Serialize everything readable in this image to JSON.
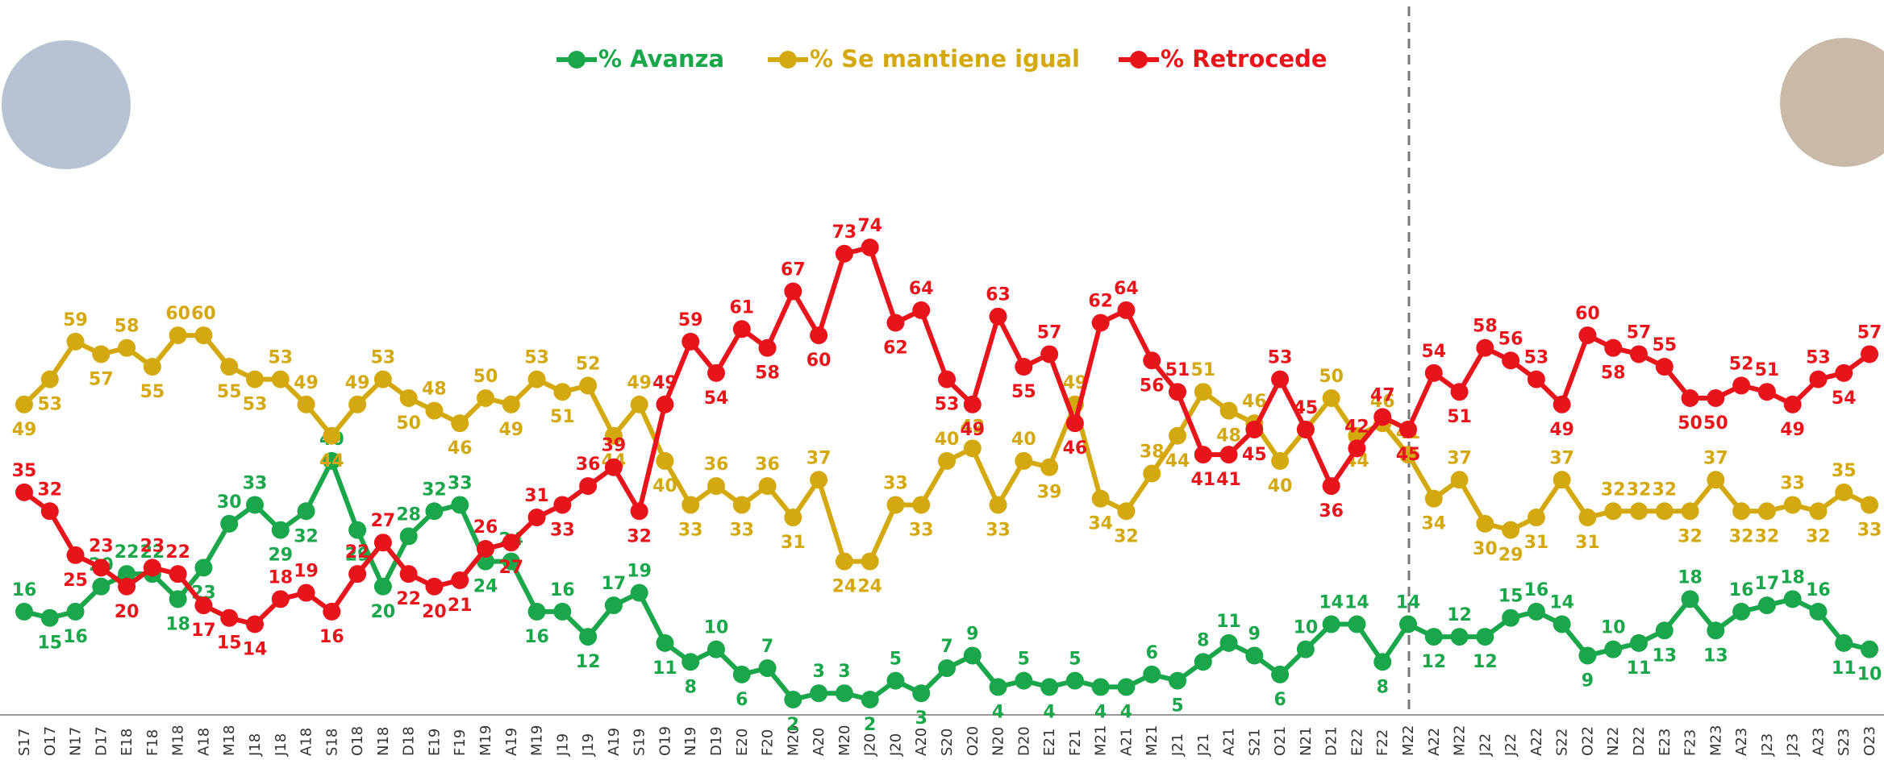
{
  "chart_data": {
    "type": "line",
    "categories": [
      "S17",
      "O17",
      "N17",
      "D17",
      "E18",
      "F18",
      "M18",
      "A18",
      "M18",
      "J18",
      "J18",
      "A18",
      "S18",
      "O18",
      "N18",
      "D18",
      "E19",
      "F19",
      "M19",
      "A19",
      "M19",
      "J19",
      "J19",
      "A19",
      "S19",
      "O19",
      "N19",
      "D19",
      "E20",
      "F20",
      "M20",
      "A20",
      "M20",
      "J20",
      "J20",
      "A20",
      "S20",
      "O20",
      "N20",
      "D20",
      "E21",
      "F21",
      "M21",
      "A21",
      "M21",
      "J21",
      "J21",
      "A21",
      "S21",
      "O21",
      "N21",
      "D21",
      "E22",
      "F22",
      "M22",
      "A22",
      "M22",
      "J22",
      "J22",
      "A22",
      "S22",
      "O22",
      "N22",
      "D22",
      "E23",
      "F23",
      "M23",
      "A23",
      "J23",
      "J23",
      "A23",
      "S23",
      "O23"
    ],
    "series": [
      {
        "name": "% Avanza",
        "color": "#1aa64a",
        "values": [
          16,
          15,
          16,
          20,
          22,
          22,
          18,
          23,
          30,
          33,
          29,
          32,
          40,
          29,
          20,
          28,
          32,
          33,
          24,
          24,
          16,
          16,
          12,
          17,
          19,
          11,
          8,
          10,
          6,
          7,
          2,
          3,
          3,
          2,
          5,
          3,
          7,
          9,
          4,
          5,
          4,
          5,
          4,
          4,
          6,
          5,
          8,
          11,
          9,
          6,
          10,
          14,
          14,
          8,
          14,
          12,
          12,
          12,
          15,
          16,
          14,
          9,
          10,
          11,
          13,
          18,
          13,
          16,
          17,
          18,
          16,
          11,
          10
        ]
      },
      {
        "name": "% Se mantiene igual",
        "color": "#d4a90f",
        "values": [
          49,
          53,
          59,
          57,
          58,
          55,
          60,
          60,
          55,
          53,
          53,
          49,
          44,
          49,
          53,
          50,
          48,
          46,
          50,
          49,
          53,
          51,
          52,
          44,
          49,
          40,
          33,
          36,
          33,
          36,
          31,
          37,
          24,
          24,
          33,
          33,
          40,
          42,
          33,
          40,
          39,
          49,
          34,
          32,
          38,
          44,
          51,
          48,
          46,
          40,
          45,
          50,
          44,
          46,
          41,
          34,
          37,
          30,
          29,
          31,
          37,
          31,
          32,
          32,
          32,
          32,
          37,
          32,
          32,
          33,
          32,
          35,
          33
        ]
      },
      {
        "name": "% Retrocede",
        "color": "#e8141b",
        "values": [
          35,
          32,
          25,
          23,
          20,
          23,
          22,
          17,
          15,
          14,
          18,
          19,
          16,
          22,
          27,
          22,
          20,
          21,
          26,
          27,
          31,
          33,
          36,
          39,
          32,
          49,
          59,
          54,
          61,
          58,
          67,
          60,
          73,
          74,
          62,
          64,
          53,
          49,
          63,
          55,
          57,
          46,
          62,
          64,
          56,
          51,
          41,
          41,
          45,
          53,
          45,
          36,
          42,
          47,
          45,
          54,
          51,
          58,
          56,
          53,
          49,
          60,
          58,
          57,
          55,
          50,
          50,
          52,
          51,
          49,
          53,
          54,
          57
        ]
      }
    ]
  }
}
